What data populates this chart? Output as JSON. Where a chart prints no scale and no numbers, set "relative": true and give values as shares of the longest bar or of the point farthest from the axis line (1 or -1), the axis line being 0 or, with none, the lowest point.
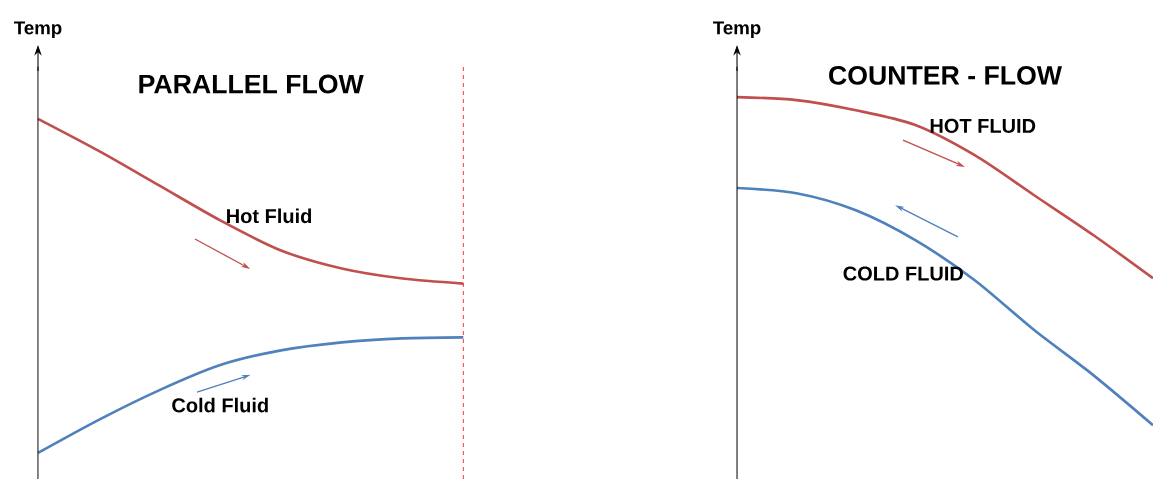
{
  "chart_data": [
    {
      "type": "line",
      "title": "PARALLEL FLOW",
      "ylabel": "Temp",
      "relative": true,
      "categories": [
        null,
        null,
        null,
        null,
        null,
        null,
        null,
        null
      ],
      "series": [
        {
          "name": "Hot Fluid",
          "color": "#c0504d",
          "values": [
            1,
            0.904,
            0.8,
            0.696,
            0.606,
            0.552,
            0.522,
            0.507
          ]
        },
        {
          "name": "Cold Fluid",
          "color": "#4f81bd",
          "values": [
            0,
            0.099,
            0.188,
            0.263,
            0.307,
            0.331,
            0.343,
            0.346
          ]
        }
      ]
    },
    {
      "type": "line",
      "title": "COUNTER - FLOW",
      "ylabel": "Temp",
      "relative": true,
      "categories": [
        null,
        null,
        null,
        null,
        null,
        null,
        null,
        null
      ],
      "series": [
        {
          "name": "HOT FLUID",
          "color": "#c0504d",
          "values": [
            1,
            0.991,
            0.96,
            0.915,
            0.823,
            0.701,
            0.579,
            0.448
          ]
        },
        {
          "name": "COLD FLUID",
          "color": "#4f81bd",
          "values": [
            0.723,
            0.707,
            0.655,
            0.564,
            0.442,
            0.29,
            0.152,
            0
          ]
        }
      ]
    }
  ]
}
